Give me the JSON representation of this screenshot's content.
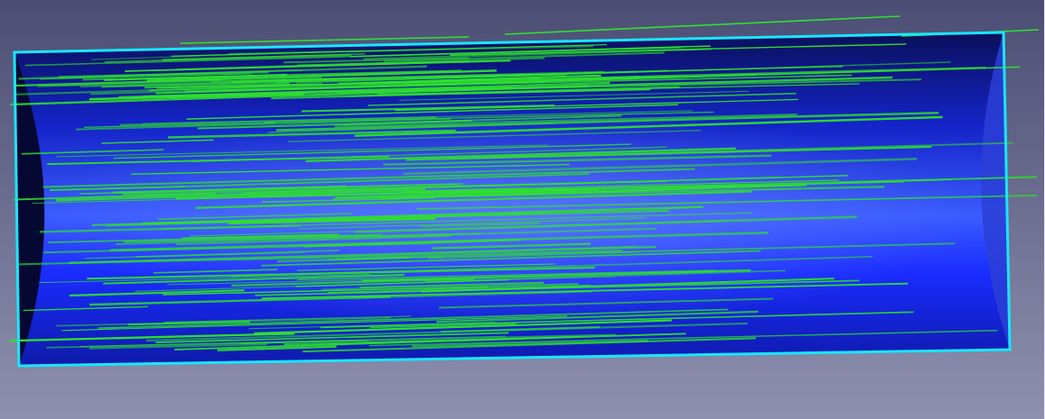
{
  "viewport": {
    "background_top": "#4b4d74",
    "background_bottom": "#8e91ae"
  },
  "model": {
    "edge_color": "#19e6ff",
    "surface_dark": "#0a0f5a",
    "surface_mid": "#1a2cff",
    "surface_light": "#5a7dff",
    "end_cap_color": "#050833",
    "streamline_color": "#2ee02e"
  }
}
